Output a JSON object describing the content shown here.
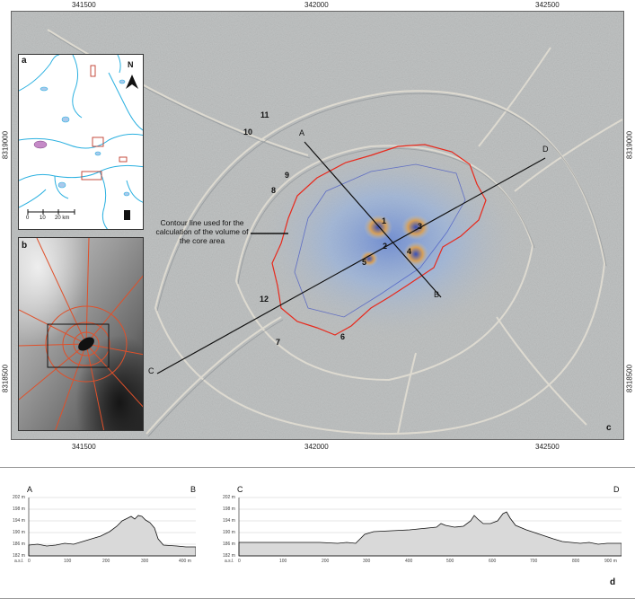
{
  "coords": {
    "top_x": [
      "341500",
      "342000",
      "342500"
    ],
    "bottom_x": [
      "341500",
      "342000",
      "342500"
    ],
    "left_y": [
      "8319000",
      "8318500"
    ],
    "right_y": [
      "8319000",
      "8318500"
    ]
  },
  "panels": {
    "a": "a",
    "b": "b",
    "c": "c",
    "d": "d"
  },
  "north_label": "N",
  "scale_bar": {
    "ticks": [
      "0",
      "10",
      "20 km"
    ]
  },
  "site_labels": [
    "1",
    "2",
    "3",
    "4",
    "5",
    "6",
    "7",
    "8",
    "9",
    "10",
    "11",
    "12"
  ],
  "profile_line_labels": {
    "A": "A",
    "B": "B",
    "C": "C",
    "D": "D"
  },
  "callout_text": "Contour line used for the calculation of the volume of the core area",
  "profile_ab": {
    "start_label": "A",
    "end_label": "B",
    "y_ticks": [
      "202 m",
      "198 m",
      "194 m",
      "190 m",
      "186 m",
      "182 m"
    ],
    "y_unit": "a.s.l.",
    "x_ticks": [
      "0",
      "100",
      "200",
      "300",
      "400 m"
    ]
  },
  "profile_cd": {
    "start_label": "C",
    "end_label": "D",
    "y_ticks": [
      "202 m",
      "198 m",
      "194 m",
      "190 m",
      "186 m",
      "182 m"
    ],
    "y_unit": "a.s.l.",
    "x_ticks": [
      "0",
      "100",
      "200",
      "300",
      "400",
      "500",
      "600",
      "700",
      "800",
      "900 m"
    ]
  },
  "colors": {
    "hillshade": "#b9bcbc",
    "contour_red": "#e8291c",
    "profile_line": "#111111",
    "water_blue": "#2ab0e0",
    "lake_fill": "#a9c9ec",
    "road_orange": "#e0502a",
    "profile_fill": "#d9d9d9"
  }
}
